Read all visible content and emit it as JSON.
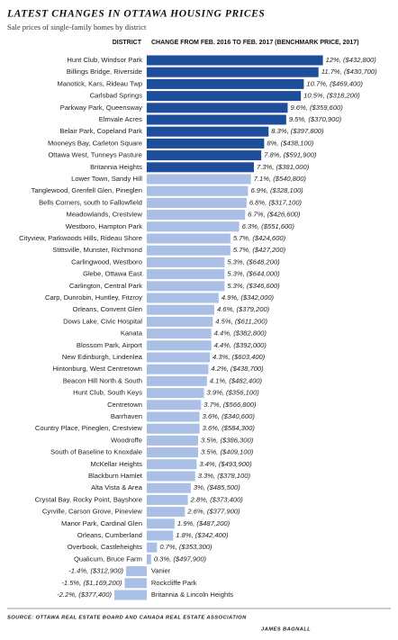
{
  "title": "LATEST CHANGES IN OTTAWA HOUSING PRICES",
  "subtitle": "Sale prices of single-family homes by district",
  "source": "SOURCE: OTTAWA REAL ESTATE BOARD AND CANADA REAL ESTATE ASSOCIATION",
  "credit": "JAMES BAGNALL",
  "chart_data": {
    "type": "bar",
    "orientation": "horizontal",
    "category_header": "DISTRICT",
    "value_header": "CHANGE FROM FEB. 2016 TO FEB. 2017 (BENCHMARK PRICE, 2017)",
    "categories": [
      "Hunt Club, Windsor Park",
      "Billings Bridge, Riverside",
      "Manotick, Kars, Rideau Twp",
      "Carlsbad Springs",
      "Parkway Park, Queensway",
      "Elmvale Acres",
      "Belair Park, Copeland Park",
      "Mooneys Bay, Carleton Square",
      "Ottawa West, Tunneys Pasture",
      "Britannia Heights",
      "Lower Town, Sandy Hill",
      "Tanglewood, Grenfell Glen, Pineglen",
      "Bells Corners, south to Fallowfield",
      "Meadowlands, Crestview",
      "Westboro, Hampton Park",
      "Cityview, Parkwoods Hills, Rideau Shore",
      "Stittsville, Munster, Richmond",
      "Carlingwood, Westboro",
      "Glebe, Ottawa East",
      "Carlington, Central Park",
      "Carp, Dunrobin, Huntley, Fitzroy",
      "Orleans, Convent Glen",
      "Dows Lake, Civic Hospital",
      "Kanata",
      "Blossom Park, Airport",
      "New Edinburgh, Lindenlea",
      "Hintonburg, West Centretown",
      "Beacon Hill North & South",
      "Hunt Club, South Keys",
      "Centretown",
      "Barrhaven",
      "Country Place, Pineglen, Crestview",
      "Woodroffe",
      "South of Baseline to Knoxdale",
      "McKellar Heights",
      "Blackburn Hamlet",
      "Alta Vista & Area",
      "Crystal Bay, Rocky Point, Bayshore",
      "Cyrville, Carson Grove, Pineview",
      "Manor Park, Cardinal Glen",
      "Orleans, Cumberland",
      "Overbook, Castleheights",
      "Qualicum, Bruce Farm",
      "Vanier",
      "Rockcliffe Park",
      "Britannia & Lincoln Heights"
    ],
    "values": [
      12,
      11.7,
      10.7,
      10.5,
      9.6,
      9.5,
      8.3,
      8,
      7.8,
      7.3,
      7.1,
      6.9,
      6.8,
      6.7,
      6.3,
      5.7,
      5.7,
      5.3,
      5.3,
      5.3,
      4.9,
      4.6,
      4.5,
      4.4,
      4.4,
      4.3,
      4.2,
      4.1,
      3.9,
      3.7,
      3.6,
      3.6,
      3.5,
      3.5,
      3.4,
      3.3,
      3,
      2.8,
      2.6,
      1.9,
      1.8,
      0.7,
      0.3,
      -1.4,
      -1.5,
      -2.2
    ],
    "value_labels": [
      "12%, ($432,800)",
      "11.7%, ($430,700)",
      "10.7%, ($469,400)",
      "10.5%, ($318,200)",
      "9.6%, ($359,600)",
      "9.5%, ($370,900)",
      "8.3%, ($397,800)",
      "8%, ($438,100)",
      "7.8%, ($591,900)",
      "7.3%, ($381,000)",
      "7.1%, ($540,800)",
      "6.9%, ($328,100)",
      "6.8%, ($317,100)",
      "6.7%, ($426,600)",
      "6.3%, ($551,600)",
      "5.7%, ($424,600)",
      "5.7%, ($427,200)",
      "5.3%, ($648,200)",
      "5.3%, ($644,000)",
      "5.3%, ($346,600)",
      "4.9%, ($342,000)",
      "4.6%, ($379,200)",
      "4.5%, ($611,200)",
      "4.4%, ($382,800)",
      "4.4%, ($392,000)",
      "4.3%, ($603,400)",
      "4.2%, ($438,700)",
      "4.1%, ($482,400)",
      "3.9%, ($356,100)",
      "3.7%, ($566,800)",
      "3.6%, ($340,600)",
      "3.6%, ($584,300)",
      "3.5%, ($386,300)",
      "3.5%, ($409,100)",
      "3.4%, ($493,900)",
      "3.3%, ($378,100)",
      "3%, ($485,500)",
      "2.8%, ($373,400)",
      "2.6%, ($377,900)",
      "1.9%, ($487,200)",
      "1.8%, ($342,400)",
      "0.7%, ($353,300)",
      "0.3%, ($497,900)",
      "-1.4%, ($312,900)",
      "-1.5%, ($1,169,200)",
      "-2.2%, ($377,400)"
    ],
    "colors": [
      "#1d4d9b",
      "#1d4d9b",
      "#1d4d9b",
      "#1d4d9b",
      "#1d4d9b",
      "#1d4d9b",
      "#1d4d9b",
      "#1d4d9b",
      "#1d4d9b",
      "#1d4d9b",
      "#aabfe5",
      "#aabfe5",
      "#aabfe5",
      "#aabfe5",
      "#aabfe5",
      "#aabfe5",
      "#aabfe5",
      "#aabfe5",
      "#aabfe5",
      "#aabfe5",
      "#aabfe5",
      "#aabfe5",
      "#aabfe5",
      "#aabfe5",
      "#aabfe5",
      "#aabfe5",
      "#aabfe5",
      "#aabfe5",
      "#aabfe5",
      "#aabfe5",
      "#aabfe5",
      "#aabfe5",
      "#aabfe5",
      "#aabfe5",
      "#aabfe5",
      "#aabfe5",
      "#aabfe5",
      "#aabfe5",
      "#aabfe5",
      "#aabfe5",
      "#aabfe5",
      "#aabfe5",
      "#aabfe5",
      "#aabfe5",
      "#aabfe5",
      "#aabfe5"
    ],
    "xlim": [
      -9.5,
      16.5
    ]
  }
}
